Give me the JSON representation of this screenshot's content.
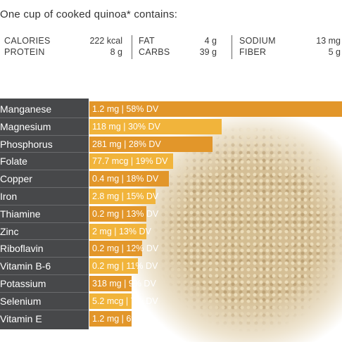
{
  "title": "One cup of cooked quinoa* contains:",
  "summary": [
    {
      "labels": [
        "CALORIES",
        "PROTEIN"
      ],
      "values": [
        "222 kcal",
        "8 g"
      ]
    },
    {
      "labels": [
        "FAT",
        "CARBS"
      ],
      "values": [
        "4 g",
        "39 g"
      ]
    },
    {
      "labels": [
        "SODIUM",
        "FIBER"
      ],
      "values": [
        "13 mg",
        "5 g"
      ]
    }
  ],
  "colors": {
    "label_panel": "#47484a",
    "bar_dark": "#e2962a",
    "bar_light": "#f1b43b"
  },
  "chart_data": {
    "type": "bar",
    "orientation": "horizontal",
    "categories": [
      "Manganese",
      "Magnesium",
      "Phosphorus",
      "Folate",
      "Copper",
      "Iron",
      "Thiamine",
      "Zinc",
      "Riboflavin",
      "Vitamin B-6",
      "Potassium",
      "Selenium",
      "Vitamin E"
    ],
    "amounts": [
      "1.2 mg",
      "118 mg",
      "281 mg",
      "77.7 mcg",
      "0.4 mg",
      "2.8 mg",
      "0.2 mg",
      "2 mg",
      "0.2 mg",
      "0.2 mg",
      "318 mg",
      "5.2 mcg",
      "1.2 mg"
    ],
    "values": [
      58,
      30,
      28,
      19,
      18,
      15,
      13,
      13,
      12,
      11,
      9,
      7,
      6
    ],
    "data_labels": [
      "1.2 mg | 58% DV",
      "118 mg | 30% DV",
      "281 mg | 28% DV",
      "77.7 mcg | 19% DV",
      "0.4 mg | 18% DV",
      "2.8 mg | 15% DV",
      "0.2 mg | 13% DV",
      "2 mg | 13% DV",
      "0.2 mg | 12% DV",
      "0.2 mg | 11% DV",
      "318 mg | 9% DV",
      "5.2 mcg | 7% DV",
      "1.2 mg | 6% DV"
    ],
    "unit": "% DV",
    "grid": false,
    "legend": "none"
  }
}
